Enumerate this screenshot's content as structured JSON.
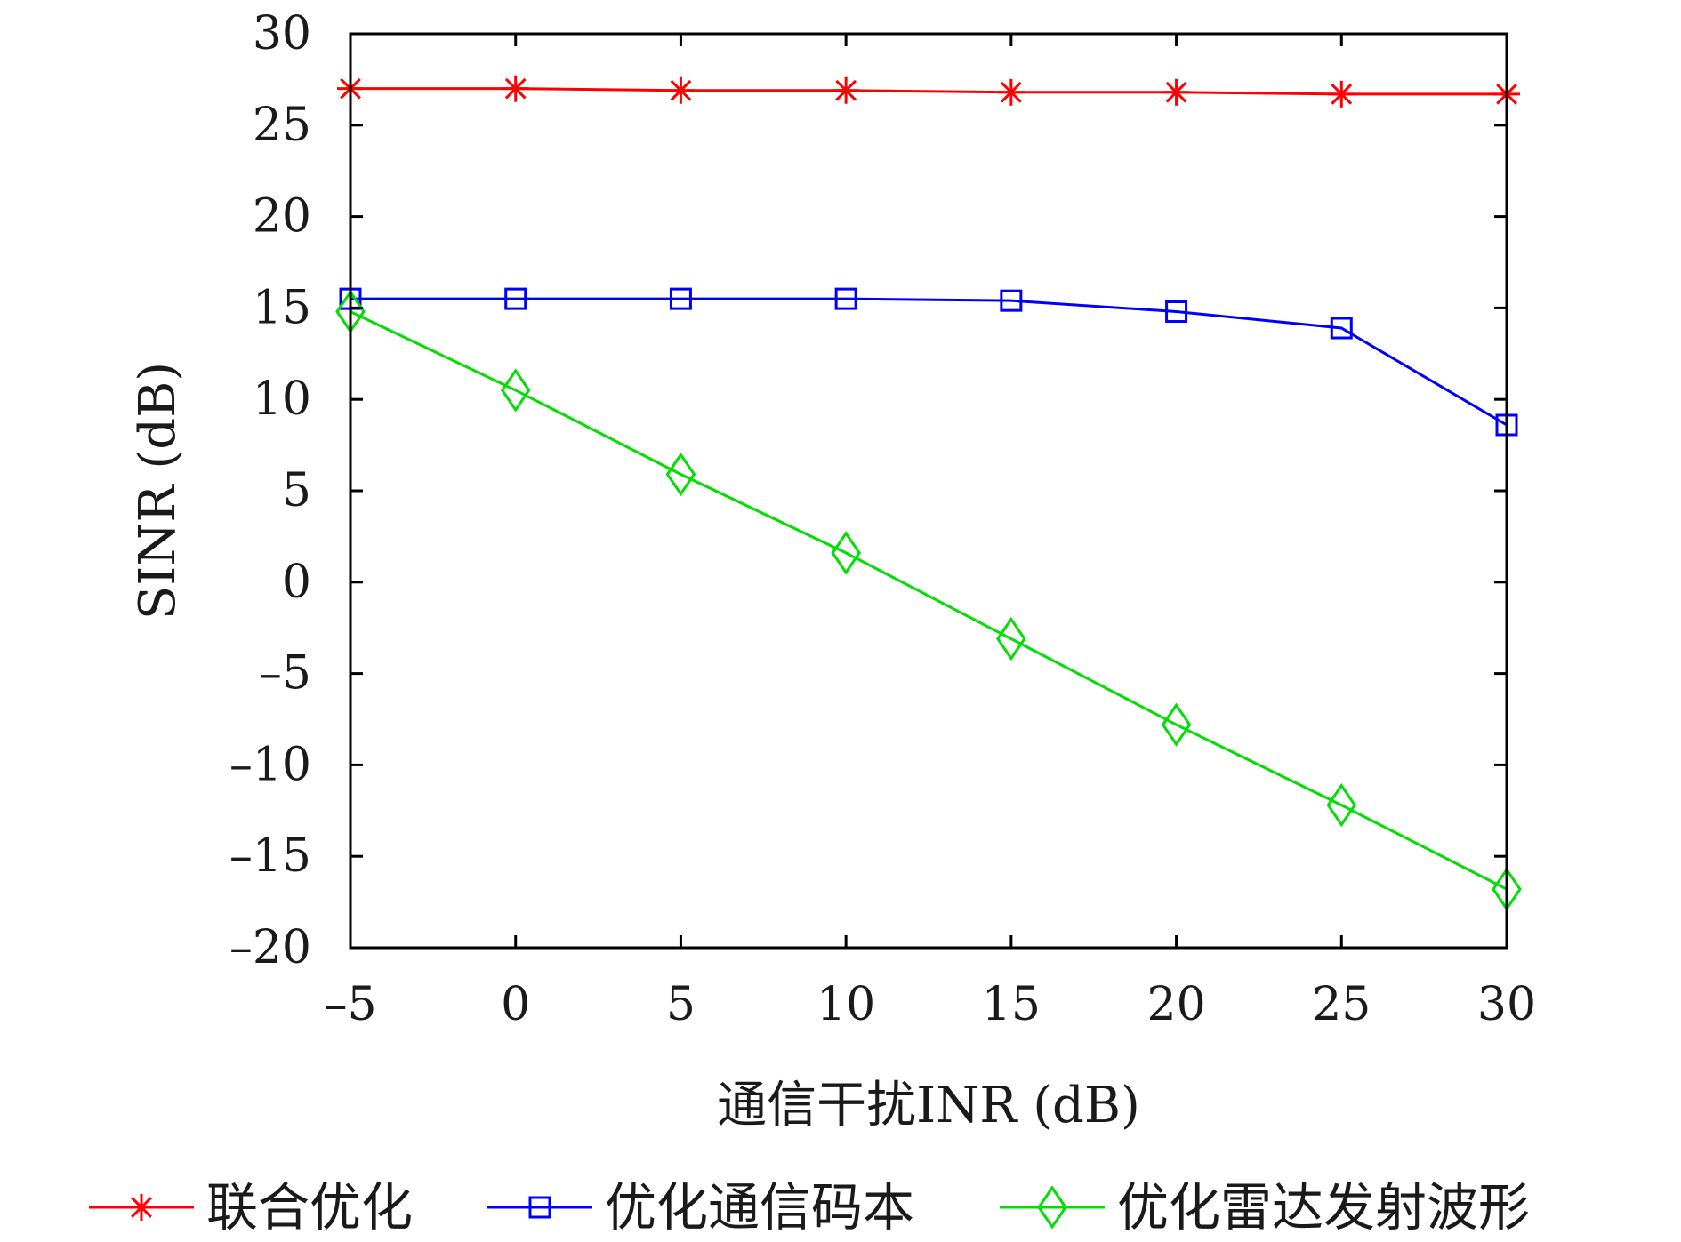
{
  "chart_data": {
    "type": "line",
    "xlabel": "通信干扰INR (dB)",
    "ylabel": "SINR (dB)",
    "xlim": [
      -5,
      30
    ],
    "ylim": [
      -20,
      30
    ],
    "x_ticks": [
      -5,
      0,
      5,
      10,
      15,
      20,
      25,
      30
    ],
    "y_ticks": [
      -20,
      -15,
      -10,
      -5,
      0,
      5,
      10,
      15,
      20,
      25,
      30
    ],
    "x_tick_labels": [
      "–5",
      "0",
      "5",
      "10",
      "15",
      "20",
      "25",
      "30"
    ],
    "y_tick_labels": [
      "–20",
      "–15",
      "–10",
      "–5",
      "0",
      "5",
      "10",
      "15",
      "20",
      "25",
      "30"
    ],
    "x": [
      -5,
      0,
      5,
      10,
      15,
      20,
      25,
      30
    ],
    "grid": false,
    "legend_position": "bottom",
    "series": [
      {
        "name": "联合优化",
        "color": "#ff0000",
        "marker": "asterisk",
        "values": [
          27.0,
          27.0,
          26.9,
          26.9,
          26.8,
          26.8,
          26.7,
          26.7
        ]
      },
      {
        "name": "优化通信码本",
        "color": "#0000ff",
        "marker": "square",
        "values": [
          15.5,
          15.5,
          15.5,
          15.5,
          15.4,
          14.8,
          13.9,
          8.6
        ]
      },
      {
        "name": "优化雷达发射波形",
        "color": "#00e000",
        "marker": "diamond",
        "values": [
          14.8,
          10.5,
          5.9,
          1.6,
          -3.1,
          -7.8,
          -12.2,
          -16.8
        ]
      }
    ]
  }
}
